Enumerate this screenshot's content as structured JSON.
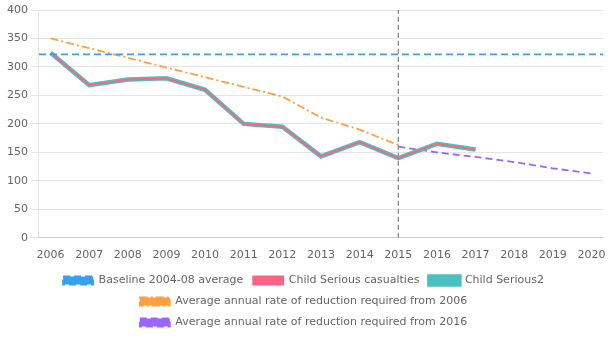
{
  "chart_data": {
    "type": "line",
    "series": [
      {
        "name": "Baseline 2004-08 average",
        "type": "hline",
        "value": 322,
        "line_style": "dashed"
      },
      {
        "name": "Child Serious casualties",
        "line_style": "solid",
        "x": [
          2006,
          2007,
          2008,
          2009,
          2010,
          2011,
          2012,
          2013,
          2014,
          2015,
          2016,
          2017
        ],
        "values": [
          325,
          268,
          278,
          280,
          260,
          200,
          195,
          143,
          168,
          140,
          165,
          155
        ]
      },
      {
        "name": "Child Serious2",
        "line_style": "solid",
        "x": [
          2006,
          2007,
          2008,
          2009,
          2010,
          2011,
          2012,
          2013,
          2014,
          2015,
          2016,
          2017
        ],
        "values": [
          325,
          268,
          278,
          280,
          260,
          200,
          195,
          143,
          168,
          140,
          165,
          155
        ]
      },
      {
        "name": "Average annual rate of reduction required from 2006",
        "line_style": "dashdot",
        "x": [
          2006,
          2007,
          2008,
          2009,
          2010,
          2011,
          2012,
          2013,
          2014,
          2015
        ],
        "values": [
          350,
          333,
          316,
          299,
          282,
          265,
          248,
          211,
          190,
          163
        ]
      },
      {
        "name": "Average annual rate of reduction required from 2016",
        "line_style": "dashed",
        "x": [
          2015,
          2016,
          2017,
          2018,
          2019,
          2020
        ],
        "values": [
          160,
          150,
          142,
          133,
          122,
          113
        ]
      }
    ],
    "vlines": [
      2015
    ],
    "xlim": [
      2005.7,
      2020.3
    ],
    "xticks": [
      2006,
      2007,
      2008,
      2009,
      2010,
      2011,
      2012,
      2013,
      2014,
      2015,
      2016,
      2017,
      2018,
      2019,
      2020
    ],
    "ylim": [
      0,
      400
    ],
    "yticks": [
      0,
      50,
      100,
      150,
      200,
      250,
      300,
      350,
      400
    ],
    "grid": "y",
    "legend": "bottom"
  }
}
